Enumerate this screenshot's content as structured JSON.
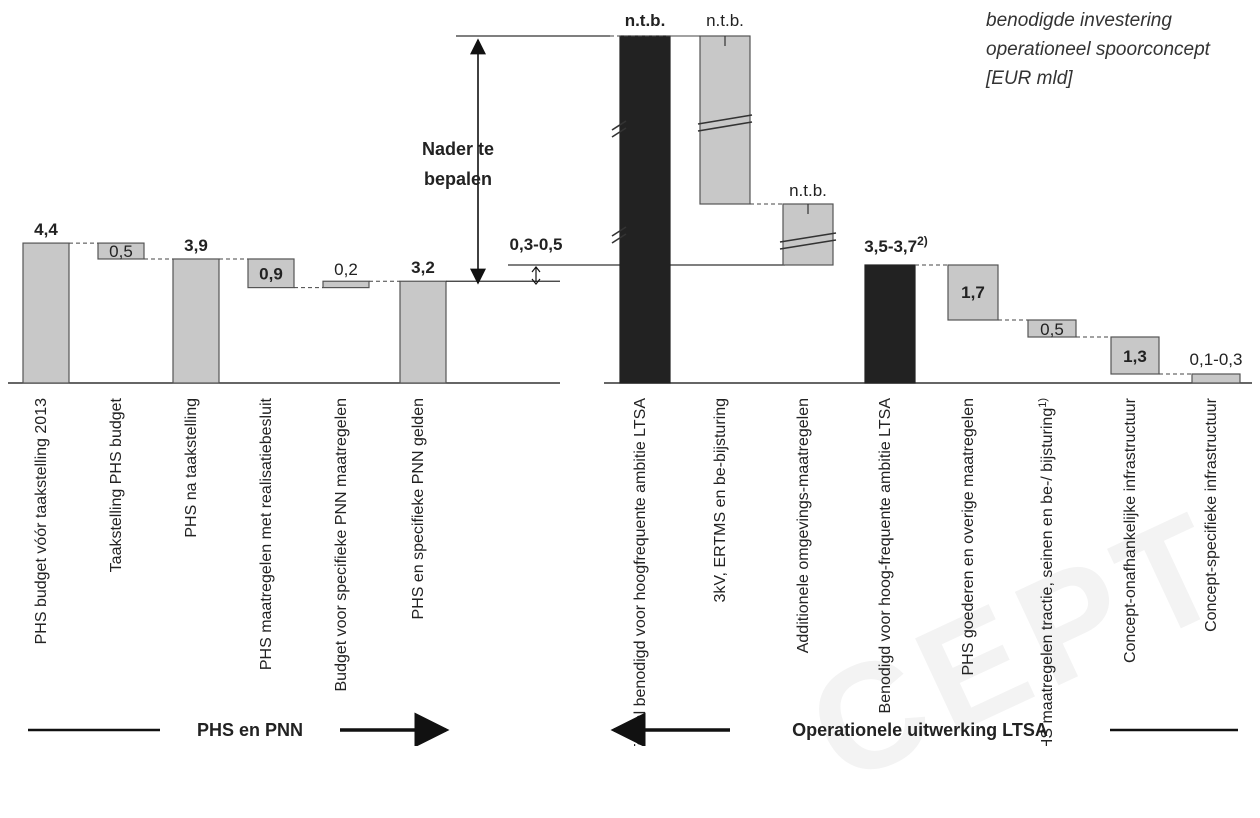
{
  "title": "benodigde investering operationeel spoorconcept [EUR mld]",
  "annotation": "Nader te bepalen",
  "watermark": "CEPT",
  "colors": {
    "grey_bar": "#c8c8c8",
    "dark_bar": "#222222",
    "outline": "#555555"
  },
  "chart_data": [
    {
      "type": "bar",
      "subtype": "waterfall",
      "group_label": "PHS en PNN",
      "group_arrow": "right",
      "unit": "EUR mld",
      "items": [
        {
          "label": "PHS budget vóór taakstelling 2013",
          "value": 4.4,
          "value_label": "4,4",
          "kind": "total"
        },
        {
          "label": "Taakstelling PHS budget",
          "value": -0.5,
          "value_label": "0,5",
          "kind": "delta"
        },
        {
          "label": "PHS na taakstelling",
          "value": 3.9,
          "value_label": "3,9",
          "kind": "total"
        },
        {
          "label": "PHS maatregelen met realisatiebesluit",
          "value": -0.9,
          "value_label": "0,9",
          "kind": "delta"
        },
        {
          "label": "Budget voor specifieke PNN maatregelen",
          "value": 0.2,
          "value_label": "0,2",
          "kind": "delta"
        },
        {
          "label": "PHS en specifieke PNN gelden",
          "value": 3.2,
          "value_label": "3,2",
          "kind": "total"
        }
      ]
    },
    {
      "type": "bar",
      "subtype": "waterfall",
      "group_label": "Operationele uitwerking LTSA",
      "group_arrow": "left",
      "unit": "EUR mld",
      "gap_label": "0,3-0,5",
      "items": [
        {
          "label": "Totaal benodigd voor hoogfrequente ambitie LTSA",
          "value": null,
          "value_label": "n.t.b.",
          "kind": "total-dark",
          "axis_break": true
        },
        {
          "label": "3kV, ERTMS en be-bijsturing",
          "value": null,
          "value_label": "n.t.b.",
          "kind": "delta",
          "axis_break": true
        },
        {
          "label": "Additionele omgevings-maatregelen",
          "value": null,
          "value_label": "n.t.b.",
          "kind": "delta",
          "axis_break": true
        },
        {
          "label": "Benodigd voor hoog-frequente ambitie LTSA",
          "value": [
            3.5,
            3.7
          ],
          "value_label": "3,5-3,7",
          "footnote": "2)",
          "kind": "total-dark"
        },
        {
          "label": "PHS goederen en overige maatregelen",
          "value": 1.7,
          "value_label": "1,7",
          "kind": "delta"
        },
        {
          "label": "PHS maatregelen tractie, seinen en be-/ bijsturing",
          "footnote": "1)",
          "value": 0.5,
          "value_label": "0,5",
          "kind": "delta"
        },
        {
          "label": "Concept-onafhankelijke infrastructuur",
          "value": 1.3,
          "value_label": "1,3",
          "kind": "delta"
        },
        {
          "label": "Concept-specifieke infrastructuur",
          "value": [
            0.1,
            0.3
          ],
          "value_label": "0,1-0,3",
          "kind": "delta"
        }
      ]
    }
  ]
}
